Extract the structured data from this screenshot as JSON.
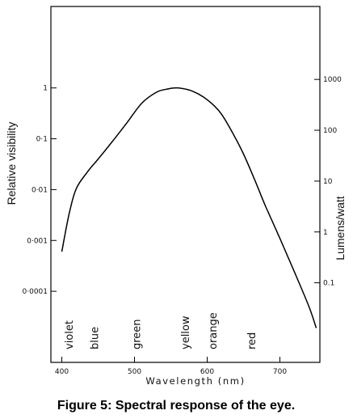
{
  "chart_data": {
    "type": "line",
    "title": "",
    "xlabel": "Wavelength (nm)",
    "ylabel_left": "Relative visibility",
    "ylabel_right": "Lumens/watt",
    "xlim": [
      385,
      755
    ],
    "ylim_log": [
      4e-06,
      40
    ],
    "y_scale": "log",
    "x_ticks": [
      {
        "value": 400,
        "label": "400"
      },
      {
        "value": 500,
        "label": "500"
      },
      {
        "value": 600,
        "label": "600"
      },
      {
        "value": 700,
        "label": "700"
      }
    ],
    "y_left_ticks": [
      {
        "value": 1,
        "label": "1"
      },
      {
        "value": 0.1,
        "label": "0·1"
      },
      {
        "value": 0.01,
        "label": "0·01"
      },
      {
        "value": 0.001,
        "label": "0·001"
      },
      {
        "value": 0.0001,
        "label": "0·0001"
      }
    ],
    "y_right_ticks": [
      {
        "value": 1.47,
        "label": "1000"
      },
      {
        "value": 0.147,
        "label": "100"
      },
      {
        "value": 0.0147,
        "label": "10"
      },
      {
        "value": 0.00147,
        "label": "1"
      },
      {
        "value": 0.000147,
        "label": "0.1"
      }
    ],
    "color_bands": [
      {
        "label": "violet",
        "x": 415
      },
      {
        "label": "blue",
        "x": 450
      },
      {
        "label": "green",
        "x": 508
      },
      {
        "label": "yellow",
        "x": 575
      },
      {
        "label": "orange",
        "x": 613
      },
      {
        "label": "red",
        "x": 666
      }
    ],
    "series": [
      {
        "x": [
          400,
          410,
          420,
          435,
          450,
          470,
          490,
          510,
          530,
          545,
          555,
          565,
          580,
          595,
          610,
          620,
          635,
          650,
          665,
          680,
          700,
          720,
          740,
          750
        ],
        "y": [
          0.0006,
          0.0033,
          0.0105,
          0.022,
          0.04,
          0.09,
          0.21,
          0.5,
          0.82,
          0.95,
          1.0,
          0.98,
          0.86,
          0.66,
          0.44,
          0.3,
          0.13,
          0.05,
          0.016,
          0.0048,
          0.0011,
          0.00024,
          5e-05,
          1.9e-05
        ]
      }
    ]
  },
  "caption": "Figure 5: Spectral response of the eye."
}
